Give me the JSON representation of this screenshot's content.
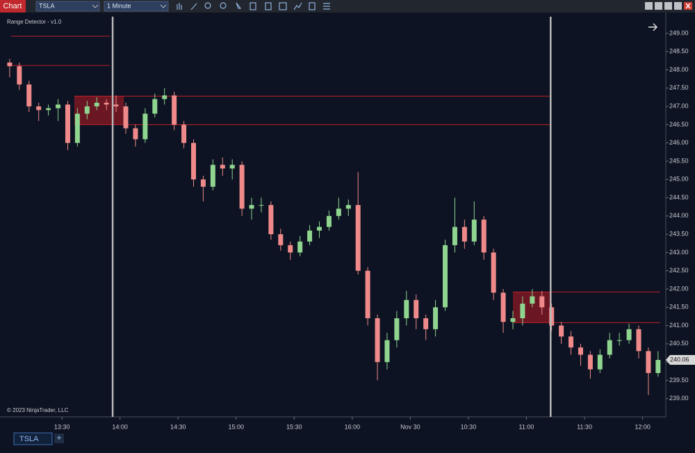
{
  "ui": {
    "app_label": "Chart",
    "instrument": "TSLA",
    "interval": "1 Minute",
    "tab": "TSLA",
    "add_tab": "+"
  },
  "chart_data": {
    "type": "candlestick",
    "title": "Range Detector - v1.0",
    "watermark": "© 2023 NinjaTrader, LLC",
    "up_color": "#8fd48f",
    "down_color": "#f08a8a",
    "x": [
      0,
      5,
      10,
      15,
      20,
      25,
      30,
      35,
      40,
      45,
      50,
      55,
      60,
      65,
      70,
      75,
      80,
      85,
      90,
      95,
      100,
      105,
      110,
      115,
      120,
      125,
      130,
      135,
      140,
      145,
      150,
      155,
      160,
      165,
      170,
      175,
      180,
      185,
      190,
      195,
      200,
      205,
      210,
      215,
      220,
      225,
      230,
      235,
      240,
      245,
      250,
      255,
      260,
      265,
      270,
      275,
      280,
      285,
      290,
      295,
      300,
      305,
      310,
      315,
      320,
      325,
      330,
      335
    ],
    "open": [
      248.2,
      248.1,
      247.6,
      247.0,
      246.9,
      246.95,
      247.05,
      246.0,
      246.8,
      247.0,
      247.1,
      247.05,
      247.0,
      246.4,
      246.1,
      246.8,
      247.2,
      247.3,
      246.5,
      246.0,
      245.0,
      244.8,
      245.4,
      245.3,
      245.4,
      244.2,
      244.3,
      244.3,
      243.5,
      243.2,
      243.0,
      243.3,
      243.6,
      243.7,
      244.0,
      244.2,
      244.3,
      242.5,
      241.2,
      240.0,
      240.6,
      241.2,
      241.7,
      241.2,
      240.9,
      241.5,
      243.2,
      243.7,
      243.3,
      243.9,
      243.0,
      241.9,
      241.1,
      241.2,
      241.6,
      241.8,
      241.5,
      241.0,
      240.7,
      240.4,
      240.2,
      239.8,
      240.2,
      240.6,
      240.6,
      240.9,
      240.3,
      239.7
    ],
    "high": [
      248.3,
      248.2,
      247.7,
      247.1,
      247.05,
      247.2,
      247.15,
      246.95,
      247.15,
      247.25,
      247.2,
      247.3,
      247.1,
      246.5,
      246.95,
      247.35,
      247.5,
      247.4,
      246.6,
      246.1,
      245.1,
      245.55,
      245.6,
      245.55,
      245.5,
      244.5,
      244.5,
      244.4,
      243.65,
      243.3,
      243.45,
      243.75,
      243.85,
      244.15,
      244.5,
      244.45,
      245.2,
      242.6,
      241.3,
      240.8,
      241.4,
      241.95,
      241.85,
      241.3,
      241.7,
      243.35,
      244.5,
      243.9,
      244.4,
      244.0,
      243.1,
      242.0,
      241.4,
      241.8,
      242.0,
      241.95,
      241.6,
      241.1,
      240.85,
      240.5,
      240.3,
      240.35,
      240.8,
      240.8,
      241.05,
      241.0,
      240.4,
      240.3
    ],
    "low": [
      247.8,
      247.45,
      246.85,
      246.6,
      246.75,
      246.6,
      245.8,
      245.9,
      246.65,
      246.9,
      246.9,
      246.85,
      246.25,
      245.9,
      246.0,
      246.7,
      247.05,
      246.35,
      245.85,
      244.8,
      244.4,
      244.7,
      245.1,
      245.0,
      244.0,
      243.9,
      244.1,
      243.35,
      243.05,
      242.8,
      242.9,
      243.2,
      243.4,
      243.6,
      243.9,
      244.0,
      242.4,
      241.0,
      239.5,
      239.8,
      240.4,
      241.0,
      240.9,
      240.6,
      240.7,
      241.4,
      243.0,
      243.1,
      243.2,
      242.8,
      241.7,
      240.8,
      240.9,
      241.0,
      241.5,
      241.3,
      240.85,
      240.5,
      240.2,
      239.9,
      239.55,
      239.7,
      240.1,
      240.45,
      240.5,
      240.1,
      239.1,
      239.6
    ],
    "close": [
      248.1,
      247.6,
      247.0,
      246.9,
      246.95,
      247.05,
      246.0,
      246.8,
      247.0,
      247.1,
      247.05,
      247.0,
      246.4,
      246.1,
      246.8,
      247.2,
      247.3,
      246.5,
      246.0,
      245.0,
      244.8,
      245.4,
      245.3,
      245.4,
      244.2,
      244.3,
      244.3,
      243.5,
      243.2,
      243.0,
      243.3,
      243.6,
      243.7,
      244.0,
      244.2,
      244.3,
      242.5,
      241.2,
      240.0,
      240.6,
      241.2,
      241.7,
      241.2,
      240.9,
      241.5,
      243.2,
      243.7,
      243.3,
      243.9,
      243.0,
      241.9,
      241.1,
      241.2,
      241.6,
      241.8,
      241.5,
      241.0,
      240.7,
      240.4,
      240.2,
      239.8,
      240.2,
      240.6,
      240.6,
      240.9,
      240.3,
      239.7,
      240.06
    ],
    "ranges": [
      {
        "start": 33.4,
        "end": 59,
        "extend_to": 279,
        "high": 247.28,
        "low": 246.5
      },
      {
        "start": 260,
        "end": 280,
        "extend_to": 336,
        "high": 241.92,
        "low": 241.08
      }
    ],
    "levels": [
      {
        "start": 0.7,
        "end": 51.8,
        "value": 248.92
      },
      {
        "start": 0.7,
        "end": 51.8,
        "value": 248.12
      }
    ],
    "vlines": [
      53.2,
      279.5
    ],
    "range_color": "#8b1a24",
    "line_color": "#c0202a",
    "xlim": [
      -5,
      339
    ],
    "ylim": [
      238.5,
      249.57
    ],
    "xticks": [
      {
        "value": 27,
        "label": "13:30"
      },
      {
        "value": 57,
        "label": "14:00"
      },
      {
        "value": 87,
        "label": "14:30"
      },
      {
        "value": 117,
        "label": "15:00"
      },
      {
        "value": 147,
        "label": "15:30"
      },
      {
        "value": 177,
        "label": "16:00"
      },
      {
        "value": 207,
        "label": "Nov 30"
      },
      {
        "value": 237,
        "label": "10:30"
      },
      {
        "value": 267,
        "label": "11:00"
      },
      {
        "value": 297,
        "label": "11:30"
      },
      {
        "value": 327,
        "label": "12:00"
      }
    ],
    "yticks": [
      {
        "value": 239,
        "label": "239.00"
      },
      {
        "value": 239.5,
        "label": "239.50"
      },
      {
        "value": 240,
        "label": "240.00"
      },
      {
        "value": 240.5,
        "label": "240.50"
      },
      {
        "value": 241,
        "label": "241.00"
      },
      {
        "value": 241.5,
        "label": "241.50"
      },
      {
        "value": 242,
        "label": "242.00"
      },
      {
        "value": 242.5,
        "label": "242.50"
      },
      {
        "value": 243,
        "label": "243.00"
      },
      {
        "value": 243.5,
        "label": "243.50"
      },
      {
        "value": 244,
        "label": "244.00"
      },
      {
        "value": 244.5,
        "label": "244.50"
      },
      {
        "value": 245,
        "label": "245.00"
      },
      {
        "value": 245.5,
        "label": "245.50"
      },
      {
        "value": 246,
        "label": "246.00"
      },
      {
        "value": 246.5,
        "label": "246.50"
      },
      {
        "value": 247,
        "label": "247.00"
      },
      {
        "value": 247.5,
        "label": "247.50"
      },
      {
        "value": 248,
        "label": "248.00"
      },
      {
        "value": 248.5,
        "label": "248.50"
      },
      {
        "value": 249,
        "label": "249.00"
      }
    ]
  }
}
